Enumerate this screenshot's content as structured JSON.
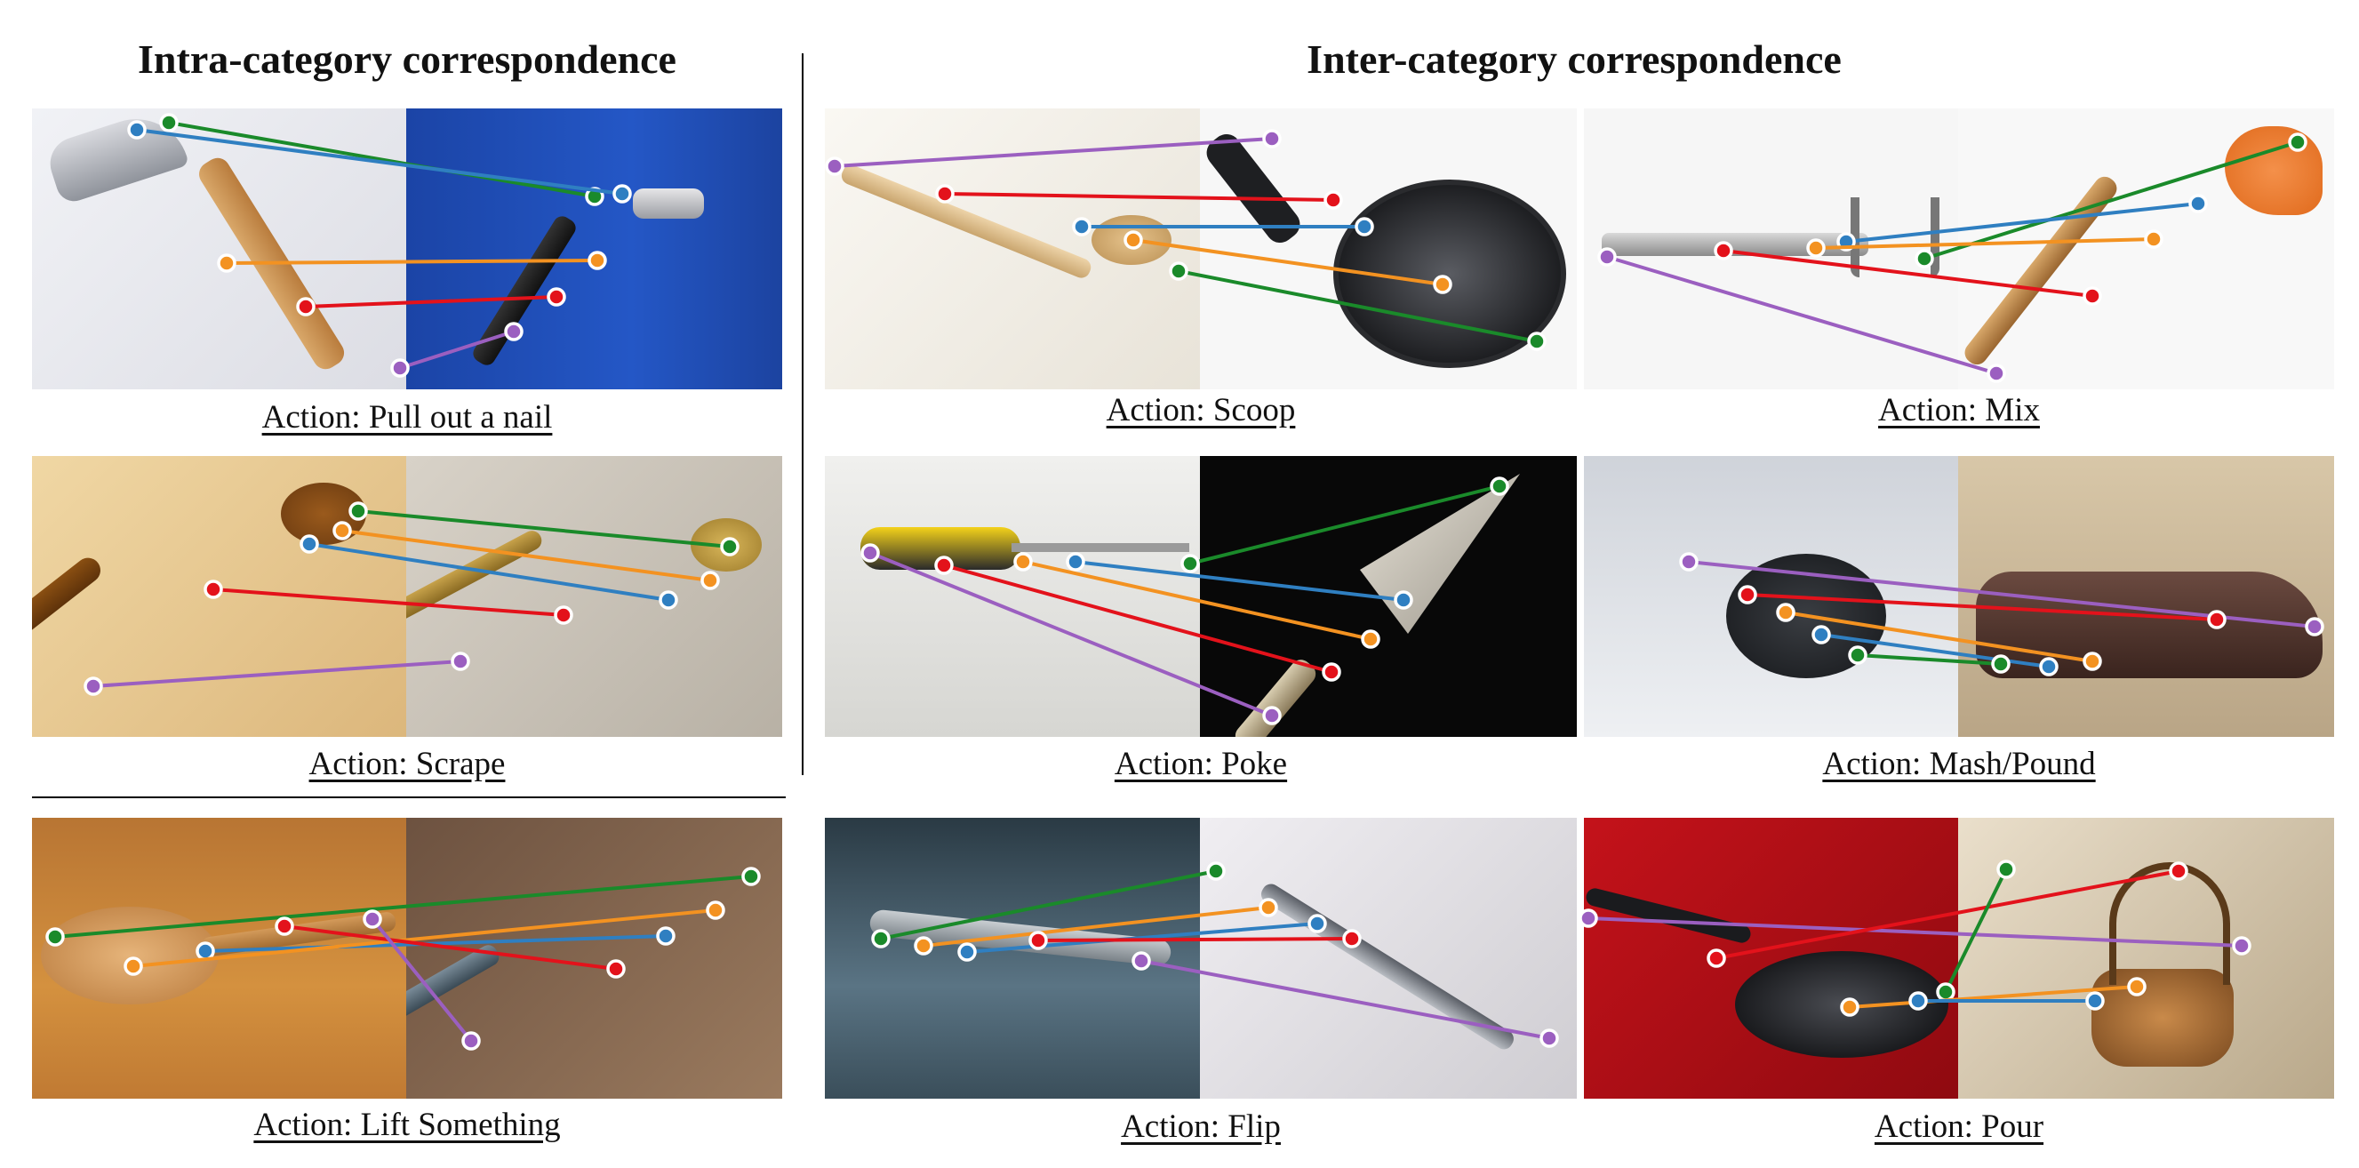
{
  "headings": {
    "intra": "Intra-category correspondence",
    "inter": "Inter-category correspondence"
  },
  "line_colors": {
    "green": "#1a8a2a",
    "blue": "#2f7fc1",
    "orange": "#f39221",
    "red": "#e3121b",
    "purple": "#9b5fc0"
  },
  "panels": [
    {
      "id": "pull-nail",
      "caption": "Action: Pull out a nail",
      "left_object": "hammer-icon",
      "right_object": "hammer-icon",
      "left_bg": "#e9eaf0",
      "right_bg": "#1f4db3"
    },
    {
      "id": "scrape",
      "caption": "Action: Scrape",
      "left_object": "wooden-spoon-icon",
      "right_object": "spoon-icon",
      "left_bg": "#e8c990",
      "right_bg": "#c8c2b8"
    },
    {
      "id": "lift",
      "caption": "Action: Lift Something",
      "left_object": "wooden-ladle-icon",
      "right_object": "fork-icon",
      "left_bg": "#c9873f",
      "right_bg": "#8a6a4e"
    },
    {
      "id": "scoop",
      "caption": "Action: Scoop",
      "left_object": "wooden-spoon-icon",
      "right_object": "frying-pan-icon",
      "left_bg": "#f4f1ea",
      "right_bg": "#f5f5f5"
    },
    {
      "id": "mix",
      "caption": "Action: Mix",
      "left_object": "fork-icon",
      "right_object": "spatula-icon",
      "left_bg": "#f5f5f5",
      "right_bg": "#f7f7f7"
    },
    {
      "id": "poke",
      "caption": "Action: Poke",
      "left_object": "screwdriver-icon",
      "right_object": "trowel-icon",
      "left_bg": "#e6e6e6",
      "right_bg": "#0a0a0a"
    },
    {
      "id": "mash",
      "caption": "Action: Mash/Pound",
      "left_object": "pot-icon",
      "right_object": "shoe-icon",
      "left_bg": "#c4c8cf",
      "right_bg": "#c9b9a0"
    },
    {
      "id": "flip",
      "caption": "Action: Flip",
      "left_object": "spoon-icon",
      "right_object": "fork-icon",
      "left_bg": "#3f5a6a",
      "right_bg": "#e2e0e4"
    },
    {
      "id": "pour",
      "caption": "Action: Pour",
      "left_object": "frying-pan-icon",
      "right_object": "watering-can-icon",
      "left_bg": "#b50d12",
      "right_bg": "#d6c7ad"
    }
  ]
}
